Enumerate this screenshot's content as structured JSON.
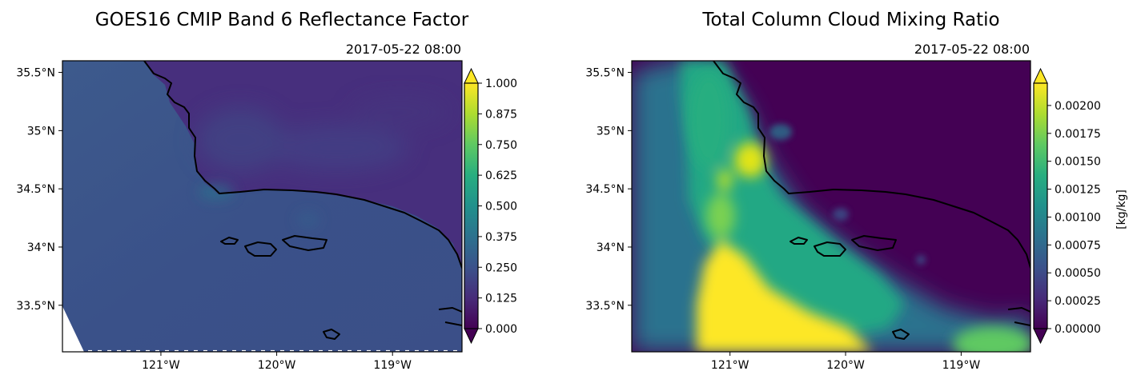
{
  "chart_data": [
    {
      "type": "heatmap",
      "title": "GOES16 CMIP Band 6 Reflectance Factor",
      "subtitle": "2017-05-22 08:00",
      "xlabel": "",
      "ylabel": "",
      "xlim": [
        -121.85,
        -118.4
      ],
      "ylim": [
        33.1,
        35.6
      ],
      "x_ticks": [
        -121,
        -120,
        -119
      ],
      "x_tick_labels": [
        "121°W",
        "120°W",
        "119°W"
      ],
      "y_ticks": [
        33.5,
        34,
        34.5,
        35,
        35.5
      ],
      "y_tick_labels": [
        "33.5°N",
        "34°N",
        "34.5°N",
        "35°N",
        "35.5°N"
      ],
      "colormap": "viridis",
      "colorbar": {
        "min": 0.0,
        "max": 1.0,
        "extend": "both",
        "label": "",
        "tick_values": [
          0.0,
          0.125,
          0.25,
          0.375,
          0.5,
          0.625,
          0.75,
          0.875,
          1.0
        ],
        "tick_labels": [
          "0.000",
          "0.125",
          "0.250",
          "0.375",
          "0.500",
          "0.625",
          "0.750",
          "0.875",
          "1.000"
        ]
      },
      "field_summary": {
        "ocean_value": 0.33,
        "land_value": 0.2
      }
    },
    {
      "type": "heatmap",
      "title": "Total Column Cloud Mixing Ratio",
      "subtitle": "2017-05-22 08:00",
      "xlabel": "",
      "ylabel": "",
      "xlim": [
        -121.85,
        -118.4
      ],
      "ylim": [
        33.1,
        35.6
      ],
      "x_ticks": [
        -121,
        -120,
        -119
      ],
      "x_tick_labels": [
        "121°W",
        "120°W",
        "119°W"
      ],
      "y_ticks": [
        33.5,
        34,
        34.5,
        35,
        35.5
      ],
      "y_tick_labels": [
        "33.5°N",
        "34°N",
        "34.5°N",
        "35°N",
        "35.5°N"
      ],
      "colormap": "viridis",
      "colorbar": {
        "min": 0.0,
        "max": 0.0022,
        "extend": "both",
        "label": "[kg/kg]",
        "tick_values": [
          0.0,
          0.00025,
          0.0005,
          0.00075,
          0.001,
          0.00125,
          0.0015,
          0.00175,
          0.002
        ],
        "tick_labels": [
          "0.00000",
          "0.00025",
          "0.00050",
          "0.00075",
          "0.00100",
          "0.00125",
          "0.00150",
          "0.00175",
          "0.00200"
        ]
      },
      "field_summary": {
        "background_value": 0.0,
        "cloud_band_max": 0.0022
      }
    }
  ],
  "colors": {
    "ocean": "#3b528b",
    "land": "#472f7d",
    "background_zero": "#440154",
    "cloud_high": "#fde725",
    "cloud_mid": "#5ec962",
    "cloud_low": "#21918c"
  }
}
